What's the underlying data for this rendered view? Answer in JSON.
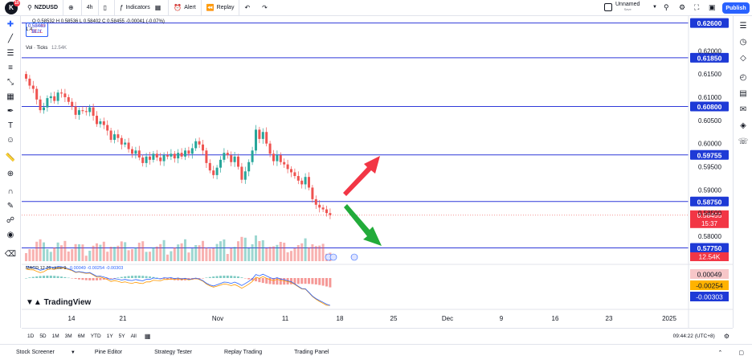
{
  "toolbar": {
    "symbol": "NZDUSD",
    "interval": "4h",
    "indicators": "Indicators",
    "alert": "Alert",
    "replay": "Replay",
    "unnamed": "Unnamed",
    "save": "Save",
    "publish": "Publish",
    "logo_letter": "K",
    "logo_badge": "10"
  },
  "legend": {
    "ohlc": "O 0.58532  H 0.58536  L 0.58402  C 0.58455  -0.00041 (-0.07%)",
    "sell_price": "0.58449",
    "sell_label": "SELL",
    "spread": "1.4",
    "buy_price": "0.58463",
    "buy_label": "BUY",
    "volume": "Vol · Ticks",
    "volume_value": "12.54K",
    "macd": "MACD 12 26 close 9",
    "macd_values": "0.00049  -0.00254  -0.00303"
  },
  "watermark": "TradingView",
  "chart_data": {
    "type": "candlestick",
    "symbol": "NZDUSD",
    "interval": "4h",
    "y_ticks": [
      "0.62000",
      "0.61500",
      "0.61000",
      "0.60500",
      "0.60000",
      "0.59500",
      "0.59000",
      "0.58500",
      "0.58000"
    ],
    "x_ticks": [
      "14",
      "21",
      "Nov",
      "11",
      "18",
      "25",
      "Dec",
      "9",
      "16",
      "23",
      "2025"
    ],
    "horizontal_levels": [
      0.626,
      0.6185,
      0.608,
      0.59755,
      0.5875,
      0.5775
    ],
    "level_labels": [
      "0.62600",
      "0.61850",
      "0.60800",
      "0.59755",
      "0.58750",
      "0.57750"
    ],
    "current_price": "0.58455",
    "countdown": "15:37",
    "volume_label": "12.54K",
    "macd_labels": [
      "0.00049",
      "-0.00254",
      "-0.00303"
    ],
    "close_series": [
      0.614,
      0.6125,
      0.6118,
      0.6095,
      0.6072,
      0.6078,
      0.6098,
      0.6102,
      0.6092,
      0.611,
      0.6108,
      0.61,
      0.609,
      0.608,
      0.6062,
      0.6072,
      0.607,
      0.6068,
      0.6078,
      0.606,
      0.6042,
      0.6048,
      0.604,
      0.6028,
      0.6008,
      0.602,
      0.6012,
      0.5998,
      0.6002,
      0.5988,
      0.5978,
      0.5985,
      0.597,
      0.5958,
      0.5972,
      0.5965,
      0.5978,
      0.597,
      0.5962,
      0.5975,
      0.5972,
      0.5978,
      0.5968,
      0.598,
      0.5972,
      0.5985,
      0.5978,
      0.599,
      0.6005,
      0.5998,
      0.5985,
      0.5958,
      0.5942,
      0.5932,
      0.5948,
      0.5965,
      0.598,
      0.5975,
      0.596,
      0.5972,
      0.595,
      0.5922,
      0.594,
      0.596,
      0.5985,
      0.603,
      0.601,
      0.6025,
      0.6,
      0.5978,
      0.5962,
      0.5975,
      0.596,
      0.5955,
      0.5945,
      0.5938,
      0.593,
      0.592,
      0.5912,
      0.5928,
      0.5905,
      0.588,
      0.5868,
      0.5862,
      0.5858,
      0.585,
      0.5846
    ]
  },
  "timeframes": [
    "1D",
    "5D",
    "1M",
    "3M",
    "6M",
    "YTD",
    "1Y",
    "5Y",
    "All"
  ],
  "time_display": "09:44:22 (UTC+8)",
  "status_tabs": [
    "Stock Screener",
    "Pine Editor",
    "Strategy Tester",
    "Replay Trading",
    "Trading Panel"
  ],
  "colors": {
    "up": "#26a69a",
    "down": "#ef5350",
    "level_line": "#2f39d9",
    "level_label_bg": "#1e3ad6",
    "price_label_bg": "#f23645",
    "arrow_up": "#f23645",
    "arrow_down": "#22ab3a",
    "macd": "#2962ff",
    "signal": "#ff9800",
    "accent": "#2962ff"
  }
}
